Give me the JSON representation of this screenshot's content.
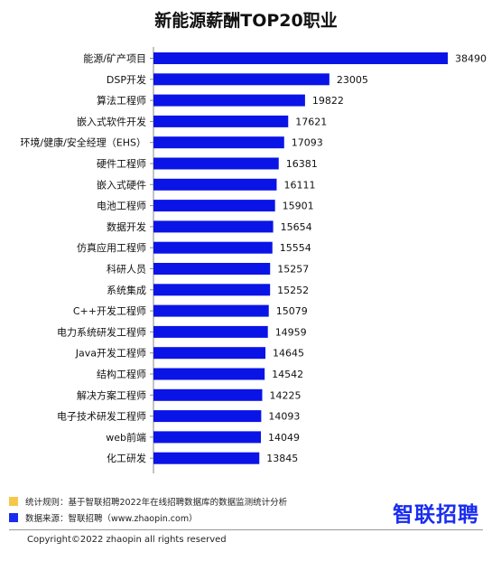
{
  "chart_data": {
    "type": "bar",
    "orientation": "horizontal",
    "title": "新能源薪酬TOP20职业",
    "categories": [
      "能源/矿产项目",
      "DSP开发",
      "算法工程师",
      "嵌入式软件开发",
      "环境/健康/安全经理（EHS）",
      "硬件工程师",
      "嵌入式硬件",
      "电池工程师",
      "数据开发",
      "仿真应用工程师",
      "科研人员",
      "系统集成",
      "C++开发工程师",
      "电力系统研发工程师",
      "Java开发工程师",
      "结构工程师",
      "解决方案工程师",
      "电子技术研发工程师",
      "web前端",
      "化工研发"
    ],
    "values": [
      38490,
      23005,
      19822,
      17621,
      17093,
      16381,
      16111,
      15901,
      15654,
      15554,
      15257,
      15252,
      15079,
      14959,
      14645,
      14542,
      14225,
      14093,
      14049,
      13845
    ],
    "data_labels": [
      "38490",
      "23005",
      "19822",
      "17621",
      "17093",
      "16381",
      "16111",
      "15901",
      "15654",
      "15554",
      "15257",
      "15252",
      "15079",
      "14959",
      "14645",
      "14542",
      "14225",
      "14093",
      "14049",
      "13845"
    ],
    "bar_color": "#0a14e6",
    "xlim": [
      0,
      38490
    ]
  },
  "notes": [
    {
      "text": "统计规则：基于智联招聘2022年在线招聘数据库的数据监测统计分析",
      "color": "#f5c84a"
    },
    {
      "text": "数据来源：智联招聘（www.zhaopin.com）",
      "color": "#1a2cf0"
    }
  ],
  "brand": "智联招聘",
  "copyright": "Copyright©2022 zhaopin all rights reserved"
}
